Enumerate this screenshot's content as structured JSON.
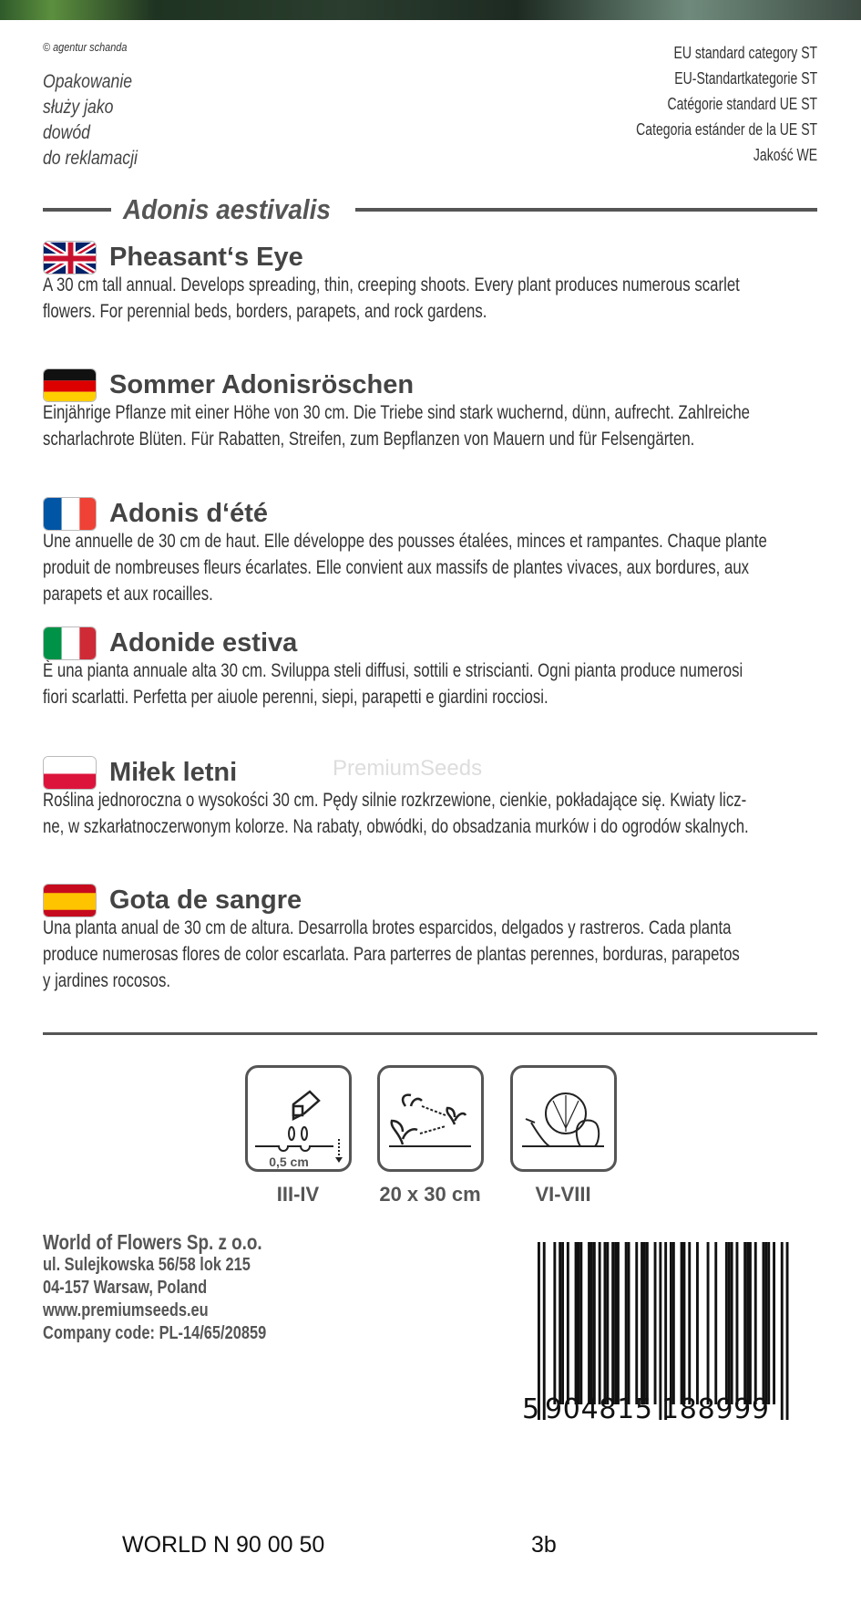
{
  "header": {
    "copyright": "© agentur schanda",
    "claim_lines": [
      "Opakowanie",
      "służy jako",
      "dowód",
      "do reklamacji"
    ],
    "category_lines": [
      "EU standard category ST",
      "EU-Standartkategorie ST",
      "Catégorie standard UE ST",
      "Categoria estánder de la UE ST",
      "Jakość WE"
    ]
  },
  "latin_name": "Adonis aestivalis",
  "sections": [
    {
      "lang": "en",
      "flag": "uk-flag",
      "title": "Pheasant‘s Eye",
      "lines": [
        "A 30 cm tall annual. Develops spreading, thin, creeping shoots. Every plant produces numerous scarlet",
        "flowers. For perennial beds, borders, parapets, and rock gardens."
      ]
    },
    {
      "lang": "de",
      "flag": "germany-flag",
      "title": "Sommer Adonisröschen",
      "lines": [
        "Einjährige Pflanze mit einer Höhe von 30 cm. Die Triebe sind stark wuchernd, dünn, aufrecht. Zahlreiche",
        "scharlachrote Blüten. Für Rabatten, Streifen, zum Bepflanzen von Mauern und für Felsengärten."
      ]
    },
    {
      "lang": "fr",
      "flag": "france-flag",
      "title": "Adonis d‘été",
      "lines": [
        "Une annuelle de 30 cm de haut. Elle développe des pousses étalées, minces et rampantes. Chaque plante",
        "produit de nombreuses fleurs écarlates. Elle convient aux massifs de plantes vivaces, aux bordures, aux",
        "parapets et aux rocailles."
      ]
    },
    {
      "lang": "it",
      "flag": "italy-flag",
      "title": "Adonide estiva",
      "lines": [
        "È una pianta annuale alta 30 cm. Sviluppa steli diffusi, sottili e striscianti. Ogni pianta produce numerosi",
        "fiori scarlatti. Perfetta per aiuole perenni, siepi, parapetti e giardini rocciosi."
      ]
    },
    {
      "lang": "pl",
      "flag": "poland-flag",
      "title": "Miłek letni",
      "lines": [
        "Roślina jednoroczna o wysokości 30 cm. Pędy silnie rozkrzewione, cienkie, pokładające się. Kwiaty licz-",
        "ne, w szkarłatnoczerwonym kolorze. Na rabaty, obwódki, do obsadzania murków i do ogrodów skalnych."
      ]
    },
    {
      "lang": "es",
      "flag": "spain-flag",
      "title": "Gota de sangre",
      "lines": [
        "Una planta anual de 30 cm de altura. Desarrolla brotes esparcidos, delgados y rastreros. Cada planta",
        "produce numerosas flores de color escarlata. Para parterres de plantas perennes, borduras, parapetos",
        "y jardines rocosos."
      ]
    }
  ],
  "watermark": "PremiumSeeds",
  "icons": [
    {
      "name": "sowing-icon",
      "inner_label": "0,5 cm",
      "label": "III-IV"
    },
    {
      "name": "spacing-icon",
      "label": "20 x 30 cm"
    },
    {
      "name": "harvest-icon",
      "label": "VI-VIII"
    }
  ],
  "company": {
    "lines": [
      "World of Flowers Sp. z o.o.",
      "ul. Sulejkowska 56/58 lok 215",
      "04-157 Warsaw, Poland",
      "www.premiumseeds.eu",
      "Company code: PL-14/65/20859"
    ]
  },
  "barcode": {
    "digits": "5904815188999",
    "first": "5",
    "left": "904815",
    "right": "188999"
  },
  "footer": {
    "code": "WORLD N 90 00 50",
    "variant": "3b"
  },
  "colors": {
    "text": "#333333",
    "heading": "#444444",
    "rule": "#555555"
  }
}
